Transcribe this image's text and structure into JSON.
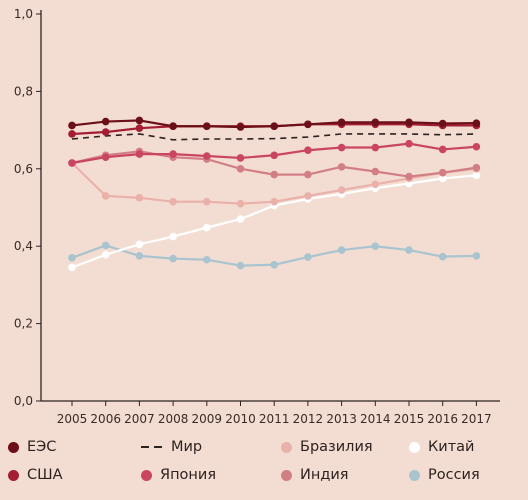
{
  "chart_data": {
    "type": "line",
    "title": "",
    "xlabel": "",
    "ylabel": "",
    "x": [
      "2005",
      "2006",
      "2007",
      "2008",
      "2009",
      "2010",
      "2011",
      "2012",
      "2013",
      "2014",
      "2015",
      "2016",
      "2017"
    ],
    "ylim": [
      0,
      1.0
    ],
    "yticks": [
      "0,0",
      "0,2",
      "0,4",
      "0,6",
      "0,8",
      "1,0"
    ],
    "grid": false,
    "legend_position": "bottom",
    "series": [
      {
        "name": "ЕЭС",
        "color": "#6b0f18",
        "style": "solid-markers",
        "values": [
          0.712,
          0.722,
          0.725,
          0.71,
          0.71,
          0.708,
          0.71,
          0.715,
          0.72,
          0.72,
          0.72,
          0.717,
          0.718
        ]
      },
      {
        "name": "Мир",
        "color": "#2e2220",
        "style": "dashed",
        "values": [
          0.677,
          0.685,
          0.69,
          0.675,
          0.677,
          0.677,
          0.678,
          0.682,
          0.69,
          0.69,
          0.69,
          0.688,
          0.69
        ]
      },
      {
        "name": "Бразилия",
        "color": "#eab1aa",
        "style": "solid-markers",
        "values": [
          0.615,
          0.53,
          0.525,
          0.515,
          0.515,
          0.51,
          0.515,
          0.53,
          0.545,
          0.56,
          0.575,
          0.59,
          0.6
        ]
      },
      {
        "name": "Китай",
        "color": "#ffffff",
        "style": "solid-markers",
        "values": [
          0.345,
          0.378,
          0.405,
          0.425,
          0.448,
          0.47,
          0.505,
          0.522,
          0.535,
          0.55,
          0.562,
          0.575,
          0.583
        ]
      },
      {
        "name": "США",
        "color": "#a31e32",
        "style": "solid-markers",
        "values": [
          0.69,
          0.695,
          0.705,
          0.71,
          0.71,
          0.71,
          0.71,
          0.715,
          0.715,
          0.715,
          0.715,
          0.712,
          0.712
        ]
      },
      {
        "name": "Япония",
        "color": "#c94560",
        "style": "solid-markers",
        "values": [
          0.615,
          0.63,
          0.638,
          0.638,
          0.633,
          0.628,
          0.635,
          0.648,
          0.655,
          0.655,
          0.665,
          0.65,
          0.657
        ]
      },
      {
        "name": "Индия",
        "color": "#d27e85",
        "style": "solid-markers",
        "values": [
          0.615,
          0.635,
          0.645,
          0.63,
          0.625,
          0.6,
          0.585,
          0.585,
          0.605,
          0.593,
          0.58,
          0.59,
          0.603
        ]
      },
      {
        "name": "Россия",
        "color": "#a9c4cf",
        "style": "solid-markers",
        "values": [
          0.37,
          0.402,
          0.375,
          0.368,
          0.365,
          0.35,
          0.352,
          0.372,
          0.39,
          0.4,
          0.39,
          0.373,
          0.375
        ]
      }
    ]
  },
  "legend_order": [
    [
      "ЕЭС",
      "Мир",
      "Бразилия",
      "Китай"
    ],
    [
      "США",
      "Япония",
      "Индия",
      "Россия"
    ]
  ]
}
